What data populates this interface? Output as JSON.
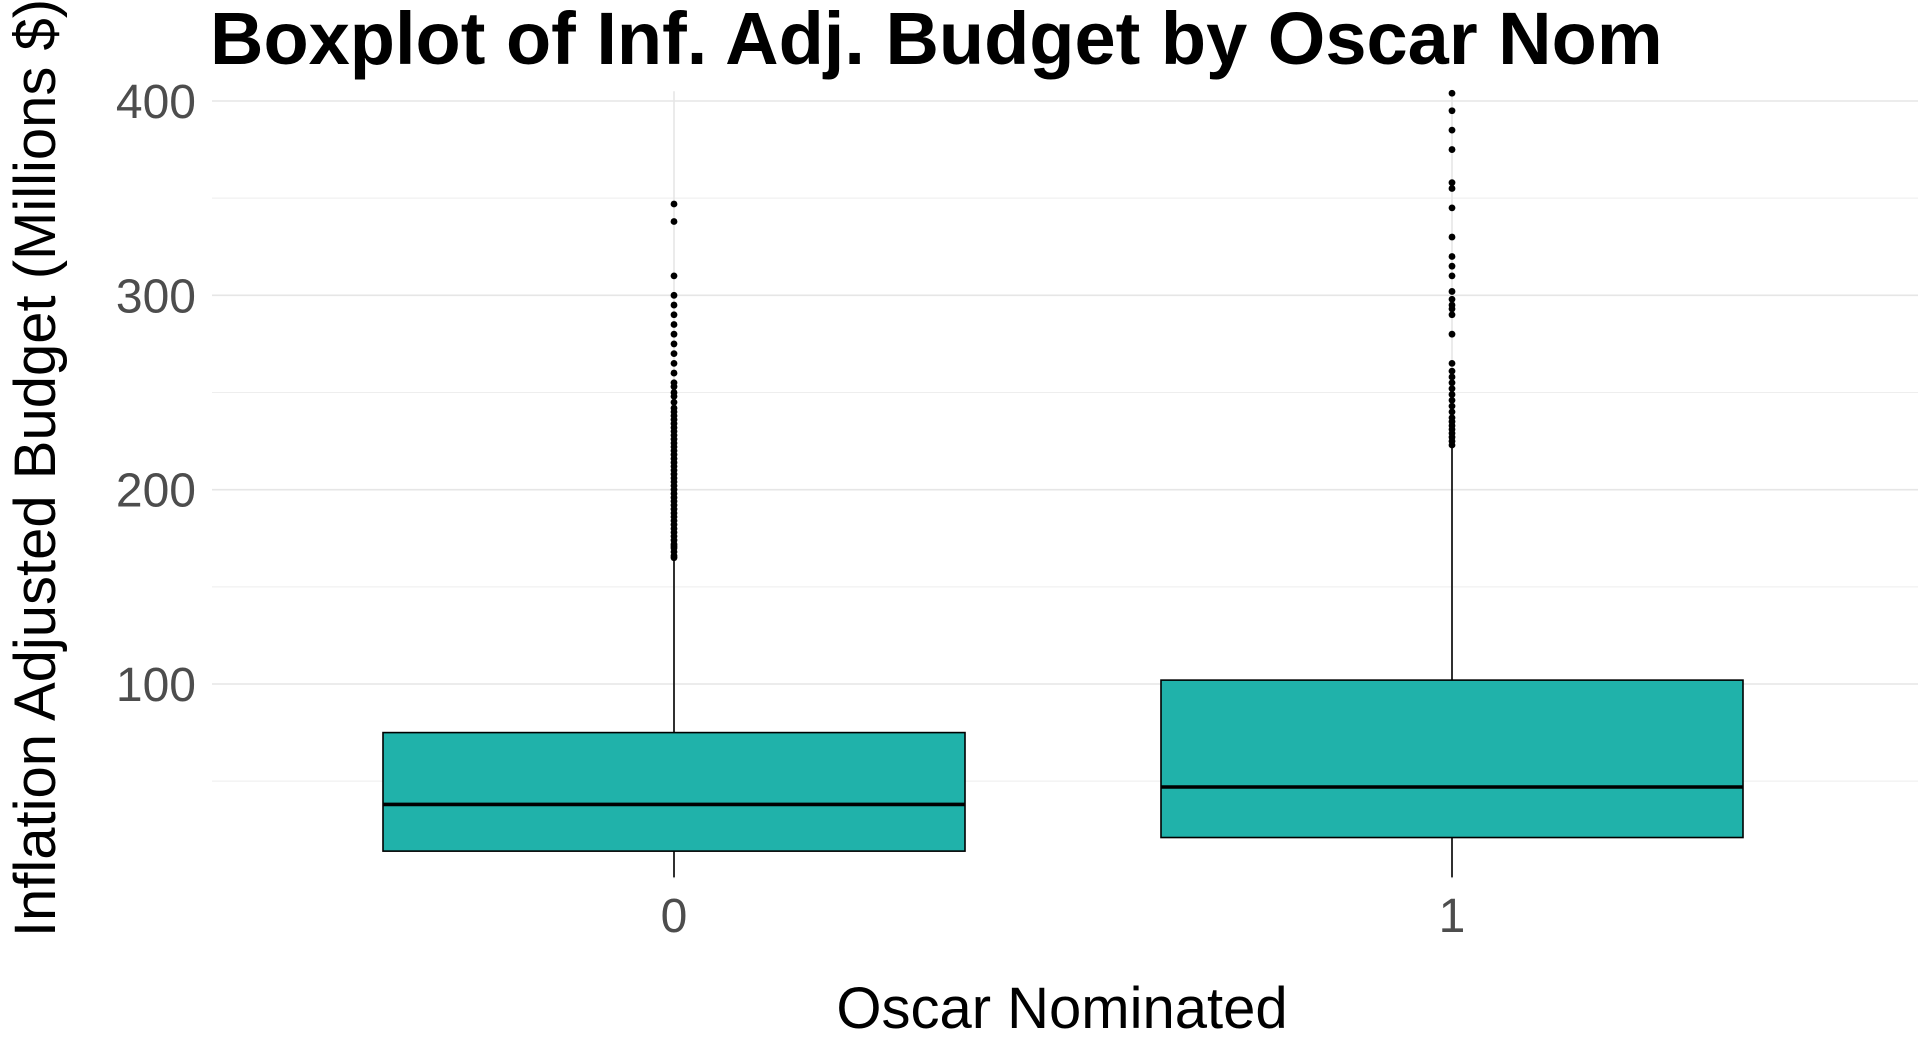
{
  "chart_data": {
    "type": "boxplot",
    "title": "Boxplot of Inf. Adj. Budget by Oscar Nom",
    "xlabel": "Oscar Nominated",
    "ylabel": "Inflation Adjusted Budget (Millions $)",
    "categories": [
      "0",
      "1"
    ],
    "y_ticks": [
      100,
      200,
      300,
      400
    ],
    "ylim": [
      0,
      405
    ],
    "grid": true,
    "legend": "none",
    "fill_color": "#20B2AA",
    "outline_color": "#000000",
    "boxes": [
      {
        "category": "0",
        "q1": 14,
        "median": 38,
        "q3": 75,
        "whisker_low": 0.5,
        "whisker_high": 165,
        "outliers": [
          165,
          166,
          168,
          170,
          171,
          172,
          174,
          176,
          178,
          180,
          182,
          184,
          186,
          188,
          190,
          192,
          194,
          196,
          198,
          200,
          202,
          204,
          206,
          208,
          210,
          212,
          214,
          216,
          218,
          220,
          222,
          224,
          226,
          228,
          230,
          232,
          234,
          236,
          238,
          240,
          242,
          245,
          248,
          250,
          253,
          255,
          260,
          265,
          270,
          275,
          280,
          285,
          290,
          295,
          300,
          310,
          338,
          347
        ]
      },
      {
        "category": "1",
        "q1": 21,
        "median": 47,
        "q3": 102,
        "whisker_low": 0.5,
        "whisker_high": 222,
        "outliers": [
          223,
          225,
          227,
          229,
          231,
          233,
          235,
          237,
          240,
          243,
          246,
          249,
          252,
          255,
          258,
          261,
          265,
          280,
          290,
          293,
          295,
          298,
          302,
          310,
          315,
          320,
          330,
          345,
          355,
          358,
          375,
          385,
          395,
          404
        ]
      }
    ]
  }
}
